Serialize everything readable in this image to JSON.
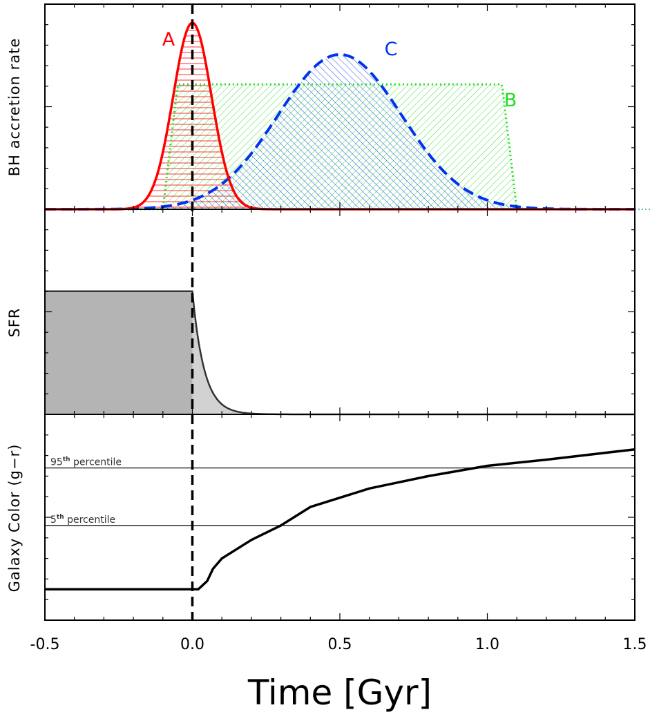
{
  "chart_data": {
    "type": "line",
    "xlabel": "Time [Gyr]",
    "xlim": [
      -0.5,
      1.5
    ],
    "xticks": [
      "-0.5",
      "0.0",
      "0.5",
      "1.0",
      "1.5"
    ],
    "xtick_values": [
      -0.5,
      0.0,
      0.5,
      1.0,
      1.5
    ],
    "vertical_line_x": 0.0,
    "panels": [
      {
        "ylabel": "BH accretion rate",
        "ylim": [
          0,
          1.1
        ],
        "series": [
          {
            "name": "A",
            "style": "solid",
            "color": "#ff0000",
            "hatch": "horizontal",
            "shape": "gaussian",
            "center": 0.0,
            "sigma": 0.065,
            "peak": 1.0
          },
          {
            "name": "B",
            "style": "dotted",
            "color": "#22dd22",
            "hatch": "diagonal-right",
            "shape": "plateau",
            "start": -0.05,
            "end": 1.05,
            "ramp": 0.05,
            "peak": 0.67
          },
          {
            "name": "C",
            "style": "dashed",
            "color": "#0033ee",
            "hatch": "diagonal-left",
            "shape": "gaussian",
            "center": 0.5,
            "sigma": 0.21,
            "peak": 0.83
          }
        ]
      },
      {
        "ylabel": "SFR",
        "ylim": [
          0,
          1.0
        ],
        "series": [
          {
            "name": "",
            "style": "solid",
            "color": "#333333",
            "x": [
              -0.5,
              0.0
            ],
            "y": [
              0.6,
              0.6
            ],
            "decay_tau": 0.04
          }
        ]
      },
      {
        "ylabel": "Galaxy Color (g−r)",
        "ylim": [
          0,
          1.0
        ],
        "reference_lines": [
          {
            "value": 0.74,
            "label_main": "95",
            "label_sup": "th",
            "label_rest": " percentile"
          },
          {
            "value": 0.46,
            "label_main": "5",
            "label_sup": "th",
            "label_rest": " percentile"
          }
        ],
        "series": [
          {
            "name": "",
            "style": "solid",
            "color": "#000000",
            "x": [
              -0.5,
              0.0,
              0.02,
              0.05,
              0.07,
              0.1,
              0.2,
              0.3,
              0.4,
              0.6,
              0.8,
              1.0,
              1.2,
              1.5
            ],
            "y": [
              0.15,
              0.15,
              0.15,
              0.19,
              0.25,
              0.3,
              0.39,
              0.46,
              0.55,
              0.64,
              0.7,
              0.75,
              0.78,
              0.83
            ]
          }
        ]
      }
    ]
  }
}
